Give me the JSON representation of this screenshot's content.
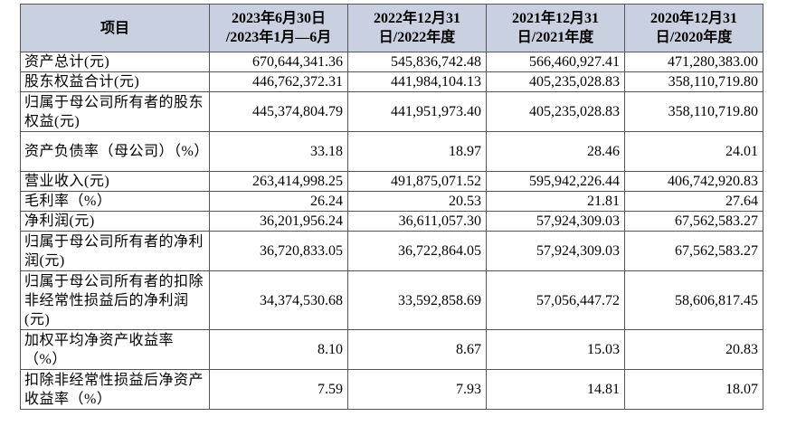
{
  "header": [
    "项目",
    "2023年6月30日\n/2023年1月—6月",
    "2022年12月31\n日/2022年度",
    "2021年12月31\n日/2021年度",
    "2020年12月31\n日/2020年度"
  ],
  "rows": [
    {
      "label": "资产总计(元)",
      "values": [
        "670,644,341.36",
        "545,836,742.48",
        "566,460,927.41",
        "471,280,383.00"
      ]
    },
    {
      "label": "股东权益合计(元)",
      "values": [
        "446,762,372.31",
        "441,984,104.13",
        "405,235,028.83",
        "358,110,719.80"
      ]
    },
    {
      "label": "归属于母公司所有者的股东权益(元)",
      "values": [
        "445,374,804.79",
        "441,951,973.40",
        "405,235,028.83",
        "358,110,719.80"
      ]
    },
    {
      "label": "资产负债率（母公司）（%）",
      "values": [
        "33.18",
        "18.97",
        "28.46",
        "24.01"
      ]
    },
    {
      "label": "营业收入(元)",
      "values": [
        "263,414,998.25",
        "491,875,071.52",
        "595,942,226.44",
        "406,742,920.83"
      ]
    },
    {
      "label": "毛利率（%）",
      "values": [
        "26.24",
        "20.53",
        "21.81",
        "27.64"
      ]
    },
    {
      "label": "净利润(元)",
      "values": [
        "36,201,956.24",
        "36,611,057.30",
        "57,924,309.03",
        "67,562,583.27"
      ]
    },
    {
      "label": "归属于母公司所有者的净利润(元)",
      "values": [
        "36,720,833.05",
        "36,722,864.05",
        "57,924,309.03",
        "67,562,583.27"
      ]
    },
    {
      "label": "归属于母公司所有者的扣除非经常性损益后的净利润(元)",
      "values": [
        "34,374,530.68",
        "33,592,858.69",
        "57,056,447.72",
        "58,606,817.45"
      ]
    },
    {
      "label": "加权平均净资产收益率（%）",
      "values": [
        "8.10",
        "8.67",
        "15.03",
        "20.83"
      ]
    },
    {
      "label": "扣除非经常性损益后净资产收益率（%）",
      "values": [
        "7.59",
        "7.93",
        "14.81",
        "18.07"
      ]
    }
  ]
}
